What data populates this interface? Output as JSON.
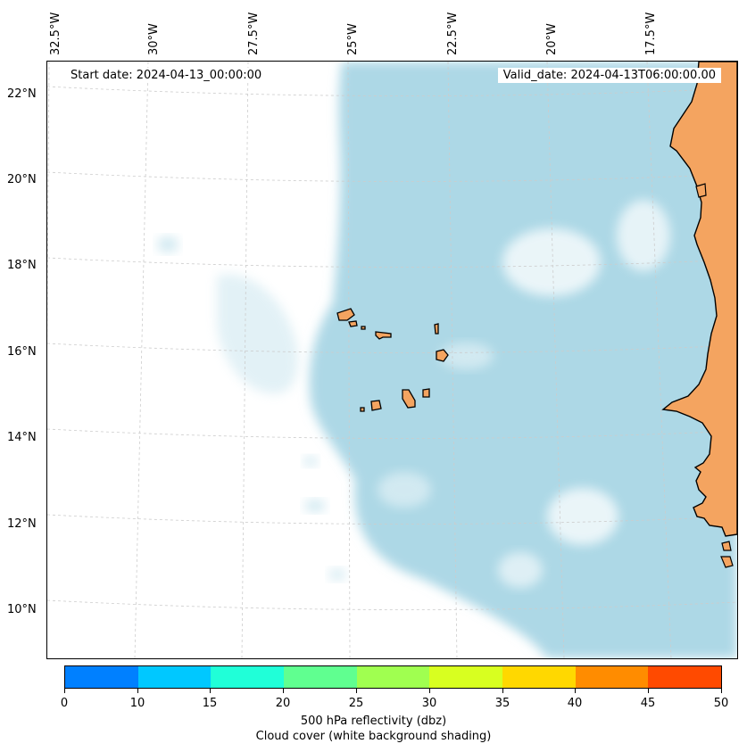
{
  "header": {
    "start_date": "Start date: 2024-04-13_00:00:00",
    "valid_date": "Valid_date: 2024-04-13T06:00:00.00"
  },
  "axes": {
    "longitude_labels": [
      "32.5°W",
      "30°W",
      "27.5°W",
      "25°W",
      "22.5°W",
      "20°W",
      "17.5°W"
    ],
    "latitude_labels": [
      "22°N",
      "20°N",
      "18°N",
      "16°N",
      "14°N",
      "12°N",
      "10°N"
    ],
    "gridlines": true
  },
  "colorbar": {
    "ticks": [
      "0",
      "10",
      "15",
      "20",
      "25",
      "30",
      "35",
      "40",
      "45",
      "50"
    ],
    "colors": [
      "#0080ff",
      "#00c8ff",
      "#20ffd8",
      "#60ff90",
      "#a0ff50",
      "#d8ff20",
      "#ffd800",
      "#ff8c00",
      "#ff4a00"
    ],
    "label_line1": "500 hPa reflectivity (dbz)",
    "label_line2": "Cloud cover (white background shading)"
  },
  "colors": {
    "land": "#f4a460",
    "cloud_shading": "#add8e6",
    "grid": "#cccccc"
  }
}
